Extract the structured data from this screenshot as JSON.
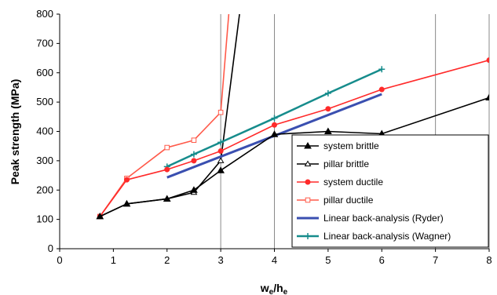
{
  "chart_data": {
    "type": "line",
    "xlabel": "w",
    "xlabel_sub1": "e",
    "xlabel_mid": "/h",
    "xlabel_sub2": "e",
    "ylabel": "Peak strength (MPa)",
    "xlim": [
      0,
      8
    ],
    "ylim": [
      0,
      800
    ],
    "xticks": [
      0,
      1,
      2,
      3,
      4,
      5,
      6,
      7,
      8
    ],
    "yticks": [
      0,
      100,
      200,
      300,
      400,
      500,
      600,
      700,
      800
    ],
    "vertical_gridlines_at": [
      3,
      4,
      7
    ],
    "legend_position": "bottom-right",
    "series": [
      {
        "name": "system brittle",
        "color": "#000000",
        "marker": "triangle",
        "x": [
          0.75,
          1.25,
          2.0,
          2.5,
          3.0,
          4.0,
          5.0,
          6.0,
          8.0
        ],
        "y": [
          110,
          153,
          170,
          200,
          267,
          390,
          400,
          392,
          515
        ]
      },
      {
        "name": "pillar brittle",
        "color": "#000000",
        "marker": "triangle-open",
        "x": [
          0.75,
          1.25,
          2.0,
          2.5,
          3.0,
          3.35
        ],
        "y": [
          110,
          153,
          170,
          192,
          300,
          800
        ]
      },
      {
        "name": "system ductile",
        "color": "#ff2a2a",
        "marker": "circle",
        "x": [
          0.75,
          1.25,
          2.0,
          2.5,
          3.0,
          4.0,
          5.0,
          6.0,
          8.0
        ],
        "y": [
          110,
          235,
          270,
          300,
          333,
          422,
          477,
          543,
          643
        ]
      },
      {
        "name": "pillar ductile",
        "color": "#ff5a4a",
        "marker": "square-open",
        "x": [
          0.75,
          1.25,
          2.0,
          2.5,
          3.0,
          3.15
        ],
        "y": [
          110,
          240,
          345,
          370,
          465,
          800
        ]
      },
      {
        "name": "Linear back-analysis (Ryder)",
        "color": "#3a4fb0",
        "marker": "none",
        "x": [
          2.0,
          6.0
        ],
        "y": [
          243,
          527
        ]
      },
      {
        "name": "Linear back-analysis (Wagner)",
        "color": "#168c8c",
        "marker": "plus",
        "x": [
          2.0,
          2.5,
          3.0,
          4.0,
          5.0,
          6.0
        ],
        "y": [
          280,
          322,
          363,
          445,
          530,
          612
        ]
      }
    ]
  }
}
